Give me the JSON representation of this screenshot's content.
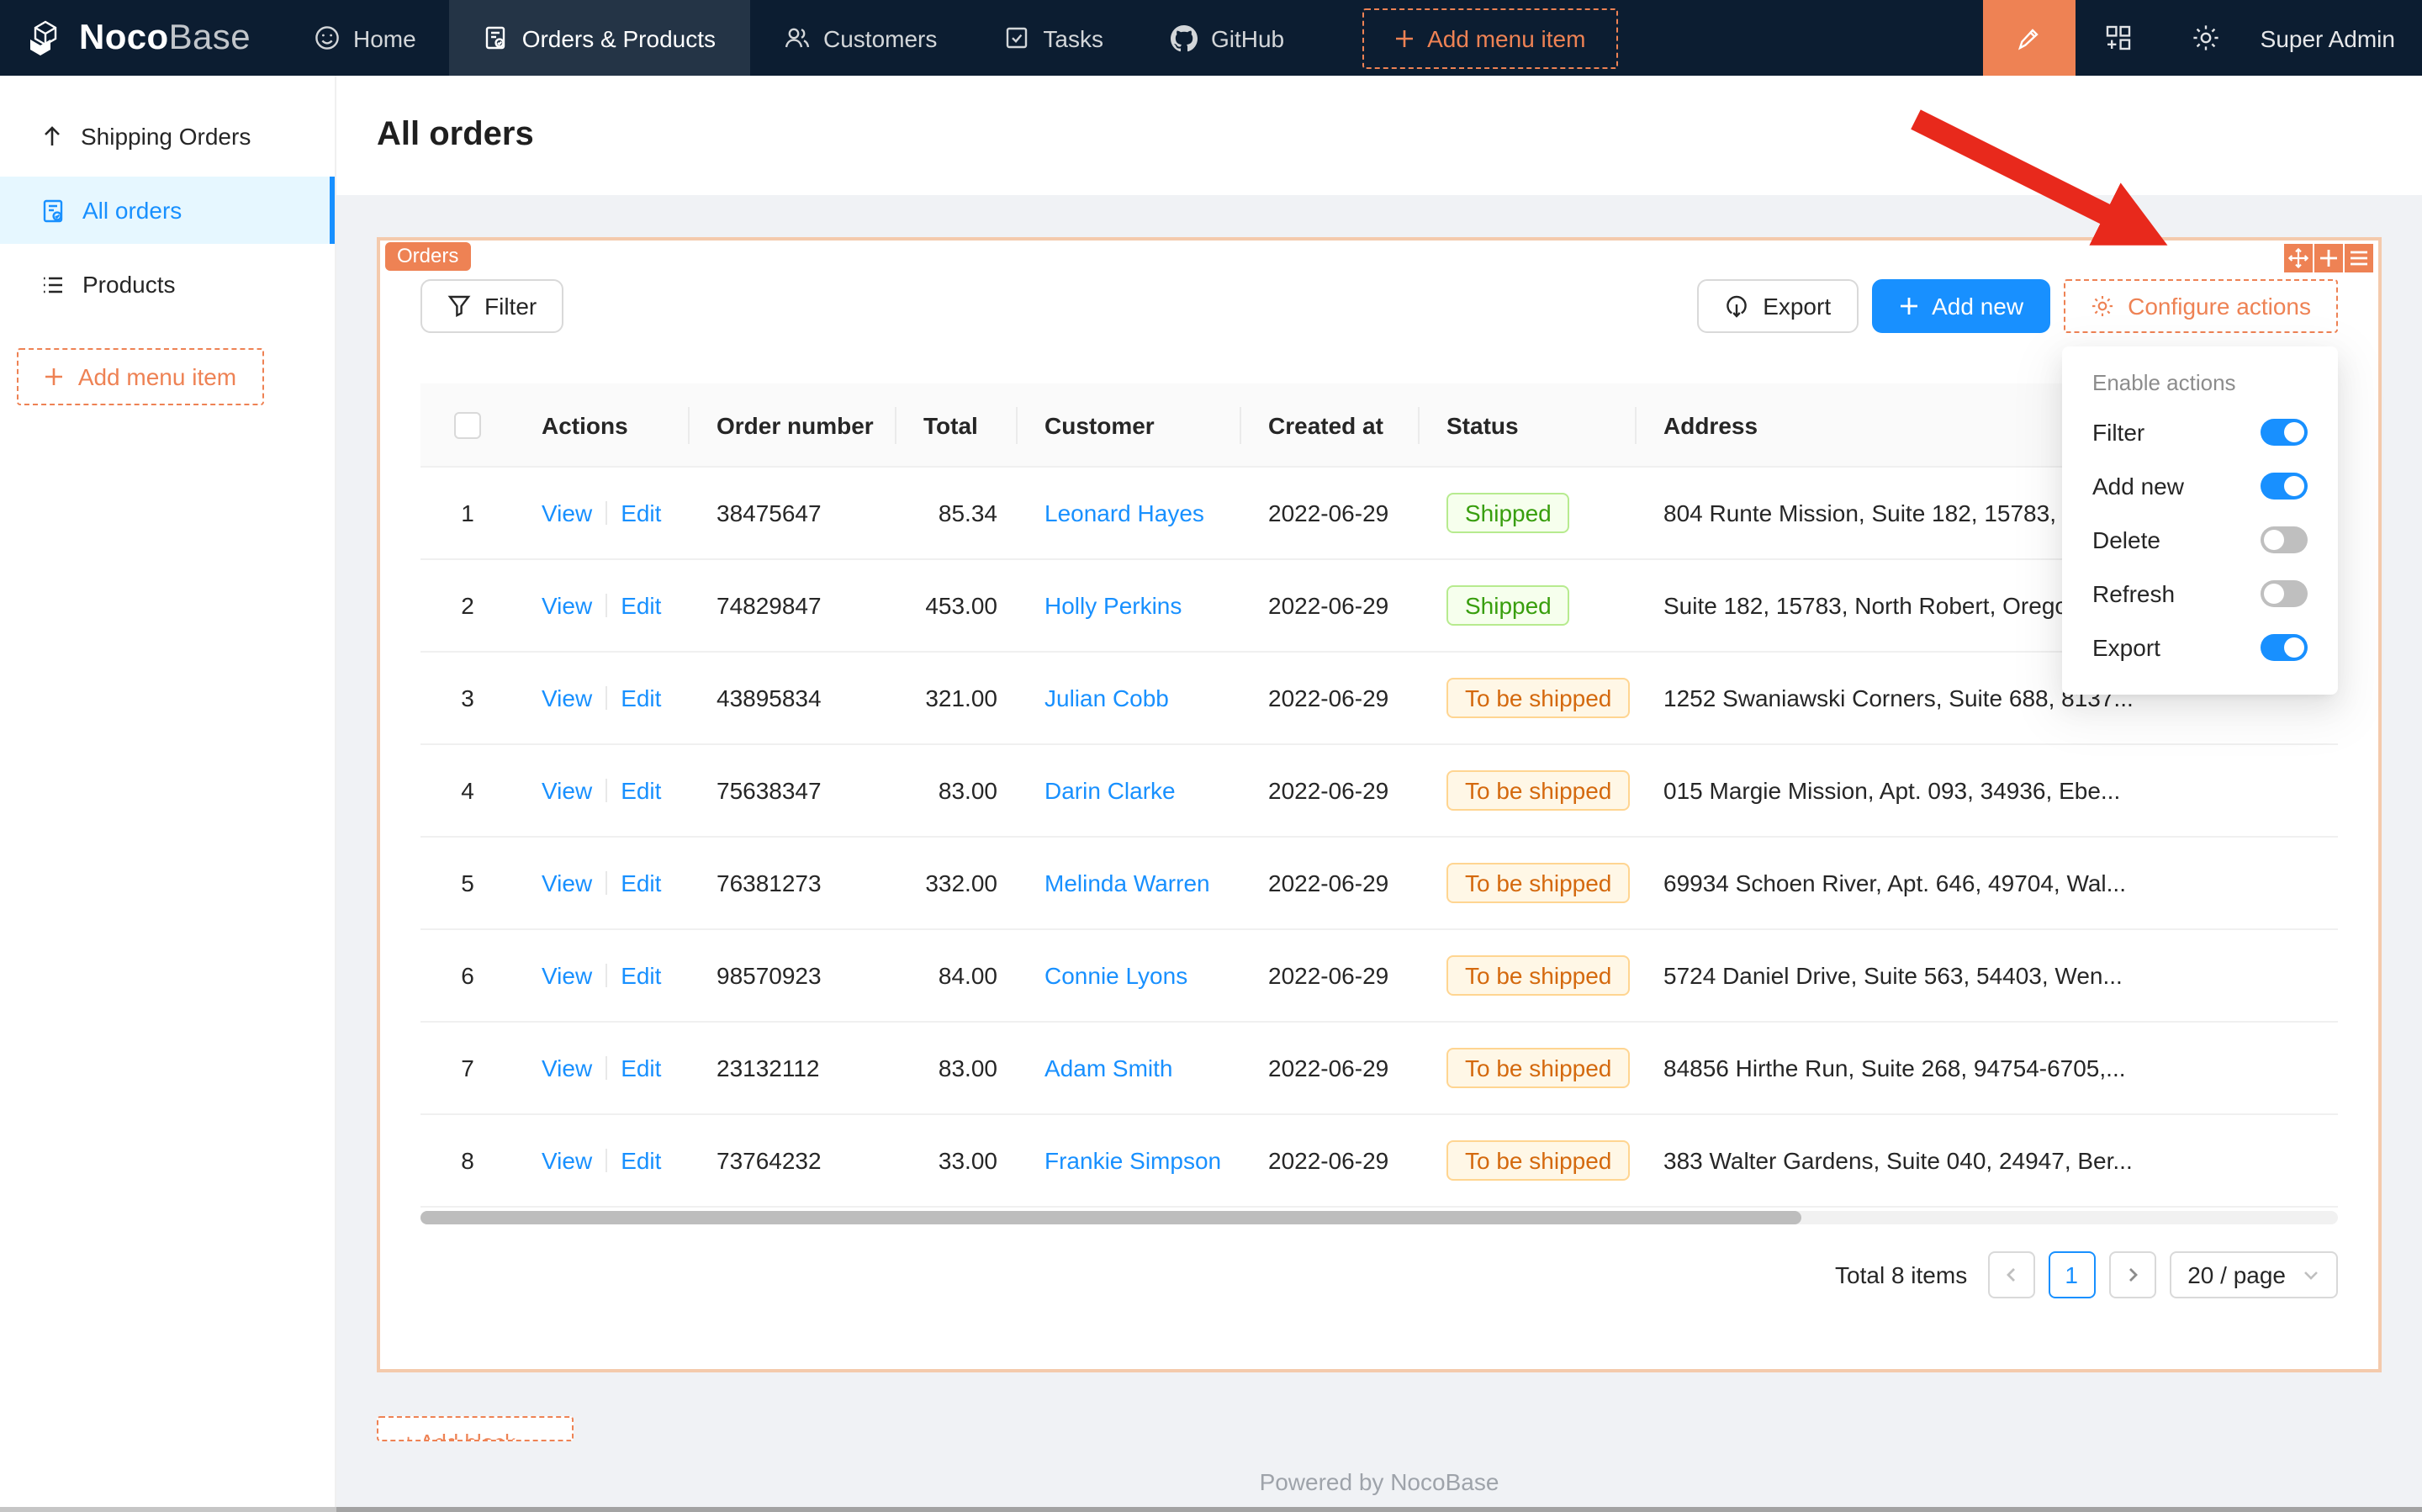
{
  "navbar": {
    "logo_bold": "Noco",
    "logo_light": "Base",
    "items": [
      {
        "label": "Home",
        "icon": "smile-icon",
        "active": false
      },
      {
        "label": "Orders & Products",
        "icon": "file-done-icon",
        "active": true
      },
      {
        "label": "Customers",
        "icon": "users-icon",
        "active": false
      },
      {
        "label": "Tasks",
        "icon": "check-square-icon",
        "active": false
      },
      {
        "label": "GitHub",
        "icon": "github-icon",
        "active": false
      }
    ],
    "add_menu_item_label": "Add menu item",
    "user": "Super Admin"
  },
  "sidebar": {
    "items": [
      {
        "label": "Shipping Orders",
        "icon": "arrow-up-icon",
        "active": false
      },
      {
        "label": "All orders",
        "icon": "order-file-icon",
        "active": true
      },
      {
        "label": "Products",
        "icon": "list-icon",
        "active": false
      }
    ],
    "add_menu_item_label": "Add menu item"
  },
  "page": {
    "title": "All orders",
    "footer": "Powered by NocoBase"
  },
  "block": {
    "tag": "Orders",
    "toolbar": {
      "filter_label": "Filter",
      "export_label": "Export",
      "add_new_label": "Add new",
      "configure_label": "Configure actions"
    }
  },
  "dropdown": {
    "title": "Enable actions",
    "items": [
      {
        "label": "Filter",
        "enabled": true
      },
      {
        "label": "Add new",
        "enabled": true
      },
      {
        "label": "Delete",
        "enabled": false
      },
      {
        "label": "Refresh",
        "enabled": false
      },
      {
        "label": "Export",
        "enabled": true
      }
    ]
  },
  "table": {
    "columns": [
      "",
      "Actions",
      "Order number",
      "Total",
      "Customer",
      "Created at",
      "Status",
      "Address"
    ],
    "row_actions": [
      "View",
      "Edit"
    ],
    "rows": [
      {
        "index": "1",
        "order": "38475647",
        "total": "85.34",
        "customer": "Leonard Hayes",
        "created": "2022-06-29",
        "status": "Shipped",
        "status_type": "success",
        "address": "804 Runte Mission, Suite 182, 15783, N"
      },
      {
        "index": "2",
        "order": "74829847",
        "total": "453.00",
        "customer": "Holly Perkins",
        "created": "2022-06-29",
        "status": "Shipped",
        "status_type": "success",
        "address": "Suite 182, 15783, North Robert, Oregon"
      },
      {
        "index": "3",
        "order": "43895834",
        "total": "321.00",
        "customer": "Julian Cobb",
        "created": "2022-06-29",
        "status": "To be shipped",
        "status_type": "warning",
        "address": "1252 Swaniawski Corners, Suite 688, 8137..."
      },
      {
        "index": "4",
        "order": "75638347",
        "total": "83.00",
        "customer": "Darin Clarke",
        "created": "2022-06-29",
        "status": "To be shipped",
        "status_type": "warning",
        "address": "015 Margie Mission, Apt. 093, 34936, Ebe..."
      },
      {
        "index": "5",
        "order": "76381273",
        "total": "332.00",
        "customer": "Melinda Warren",
        "created": "2022-06-29",
        "status": "To be shipped",
        "status_type": "warning",
        "address": "69934 Schoen River, Apt. 646, 49704, Wal..."
      },
      {
        "index": "6",
        "order": "98570923",
        "total": "84.00",
        "customer": "Connie Lyons",
        "created": "2022-06-29",
        "status": "To be shipped",
        "status_type": "warning",
        "address": "5724 Daniel Drive, Suite 563, 54403, Wen..."
      },
      {
        "index": "7",
        "order": "23132112",
        "total": "83.00",
        "customer": "Adam Smith",
        "created": "2022-06-29",
        "status": "To be shipped",
        "status_type": "warning",
        "address": "84856 Hirthe Run, Suite 268, 94754-6705,..."
      },
      {
        "index": "8",
        "order": "73764232",
        "total": "33.00",
        "customer": "Frankie Simpson",
        "created": "2022-06-29",
        "status": "To be shipped",
        "status_type": "warning",
        "address": "383 Walter Gardens, Suite 040, 24947, Ber..."
      }
    ]
  },
  "pagination": {
    "total_text": "Total 8 items",
    "current_page": "1",
    "page_size_label": "20 / page"
  },
  "add_block_label": "+ Add block",
  "colors": {
    "navbar_bg": "#0c1d31",
    "accent_orange": "#ee8254",
    "block_border": "#f4caac",
    "primary_blue": "#1890ff",
    "sidebar_selected_bg": "#e6f7ff",
    "badge_success_text": "#389e0d",
    "badge_success_bg": "#f6ffed",
    "badge_success_border": "#b7eb8f",
    "badge_warning_text": "#d4690e",
    "badge_warning_bg": "#fff7e6",
    "badge_warning_border": "#ffd591",
    "annotation_arrow": "#e8291c"
  }
}
